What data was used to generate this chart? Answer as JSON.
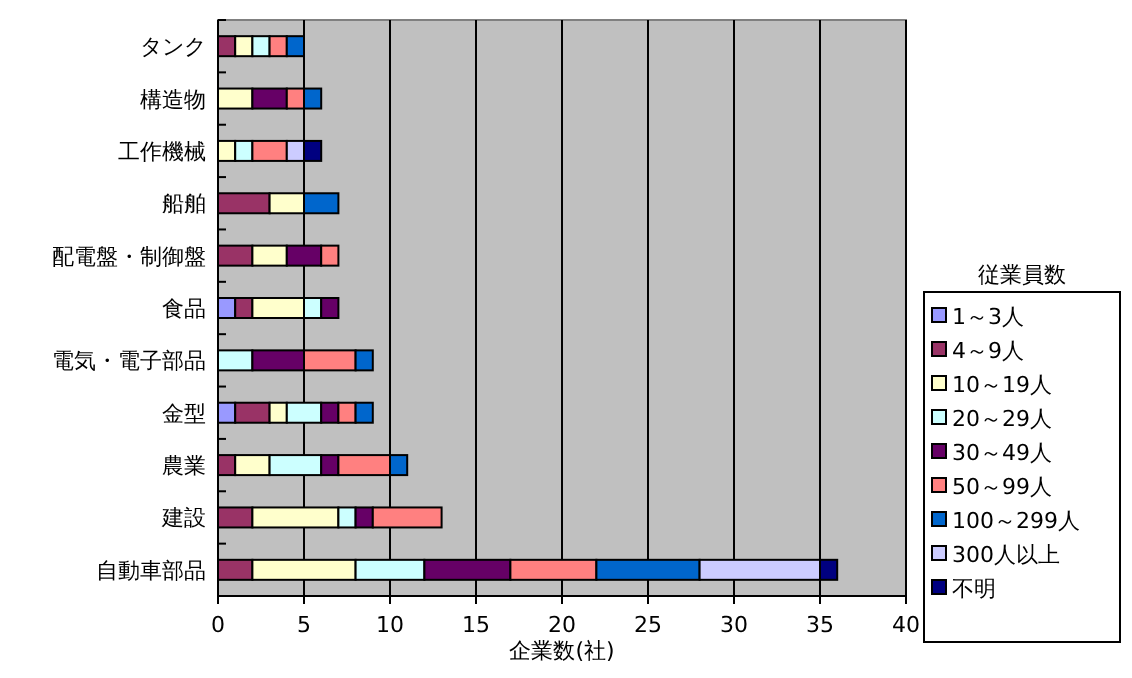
{
  "chart_data": {
    "type": "bar",
    "orientation": "horizontal",
    "stacked": true,
    "xlabel": "企業数(社)",
    "legend_title": "従業員数",
    "legend": "right",
    "grid": "x",
    "categories": [
      "タンク",
      "構造物",
      "工作機械",
      "船舶",
      "配電盤・制御盤",
      "食品",
      "電気・電子部品",
      "金型",
      "農業",
      "建設",
      "自動車部品"
    ],
    "xlim": [
      0,
      40
    ],
    "xticks": [
      0,
      5,
      10,
      15,
      20,
      25,
      30,
      35,
      40
    ],
    "series": [
      {
        "name": "1～3人",
        "color": "#9999ff",
        "values": [
          0,
          0,
          0,
          0,
          0,
          1,
          0,
          1,
          0,
          0,
          0
        ]
      },
      {
        "name": "4～9人",
        "color": "#993366",
        "values": [
          1,
          0,
          0,
          3,
          2,
          1,
          0,
          2,
          1,
          2,
          2
        ]
      },
      {
        "name": "10～19人",
        "color": "#ffffcc",
        "values": [
          1,
          2,
          1,
          2,
          2,
          3,
          0,
          1,
          2,
          5,
          6
        ]
      },
      {
        "name": "20～29人",
        "color": "#ccffff",
        "values": [
          1,
          0,
          1,
          0,
          0,
          1,
          2,
          2,
          3,
          1,
          4
        ]
      },
      {
        "name": "30～49人",
        "color": "#660066",
        "values": [
          0,
          2,
          0,
          0,
          2,
          1,
          3,
          1,
          1,
          1,
          5
        ]
      },
      {
        "name": "50～99人",
        "color": "#ff8080",
        "values": [
          1,
          1,
          2,
          0,
          1,
          0,
          3,
          1,
          3,
          4,
          5
        ]
      },
      {
        "name": "100～299人",
        "color": "#0066cc",
        "values": [
          1,
          1,
          0,
          2,
          0,
          0,
          1,
          1,
          1,
          0,
          6
        ]
      },
      {
        "name": "300人以上",
        "color": "#ccccff",
        "values": [
          0,
          0,
          1,
          0,
          0,
          0,
          0,
          0,
          0,
          0,
          7
        ]
      },
      {
        "name": "不明",
        "color": "#000080",
        "values": [
          0,
          0,
          1,
          0,
          0,
          0,
          0,
          0,
          0,
          0,
          1
        ]
      }
    ]
  }
}
